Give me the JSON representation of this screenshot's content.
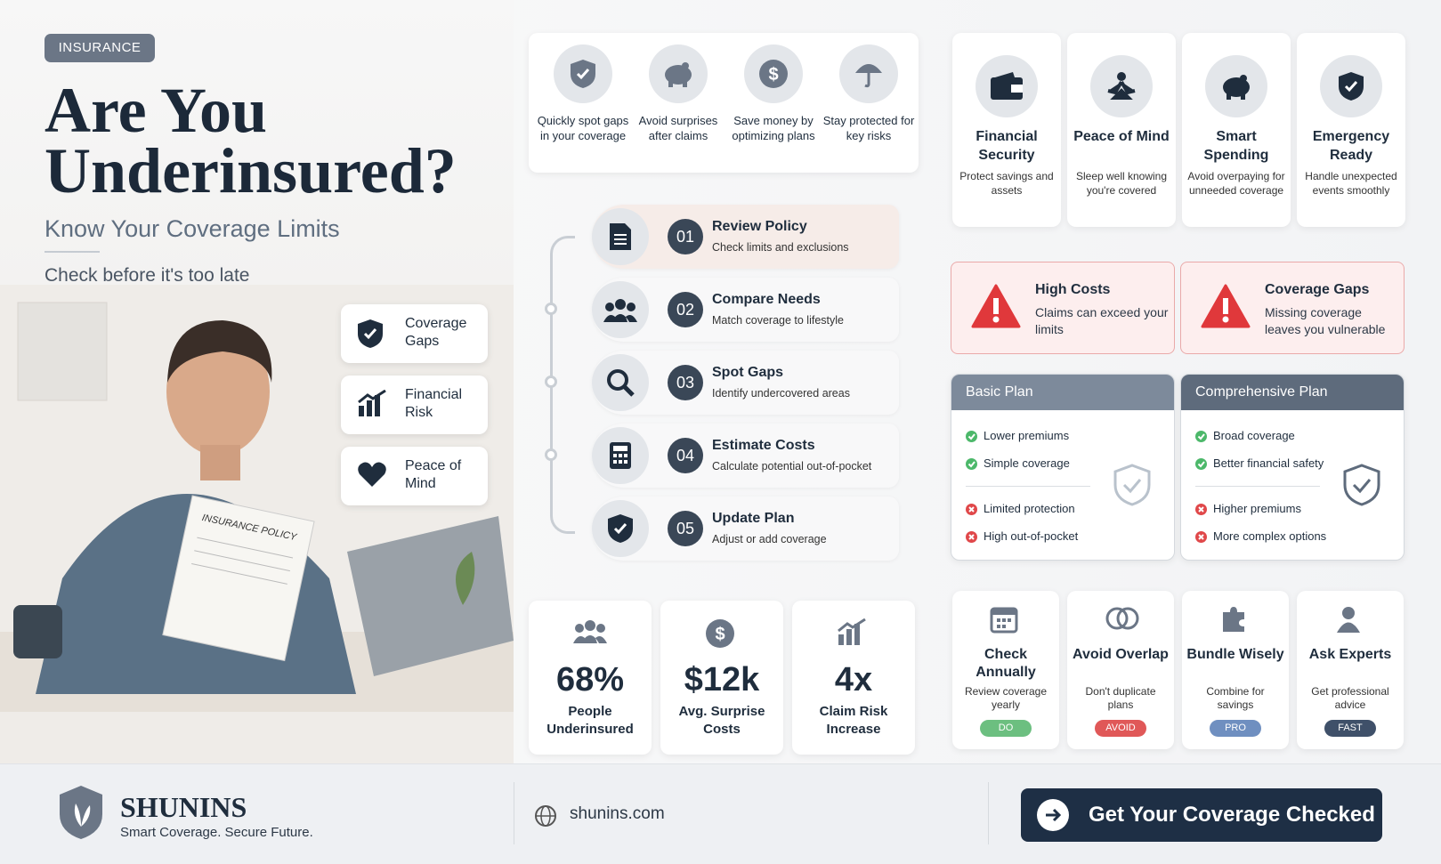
{
  "hero": {
    "tag": "INSURANCE",
    "title_line1": "Are You",
    "title_line2": "Underinsured?",
    "subtitle": "Know Your Coverage Limits",
    "tagline": "Check before it's too late",
    "document_label": "INSURANCE POLICY",
    "badges": [
      {
        "label": "Coverage Gaps"
      },
      {
        "label": "Financial Risk"
      },
      {
        "label": "Peace of Mind"
      }
    ]
  },
  "benefits": [
    {
      "text": "Quickly spot gaps in your coverage"
    },
    {
      "text": "Avoid surprises after claims"
    },
    {
      "text": "Save money by optimizing plans"
    },
    {
      "text": "Stay protected for key risks"
    }
  ],
  "steps": [
    {
      "number": "01",
      "title": "Review Policy",
      "desc": "Check limits and exclusions"
    },
    {
      "number": "02",
      "title": "Compare Needs",
      "desc": "Match coverage to lifestyle"
    },
    {
      "number": "03",
      "title": "Spot Gaps",
      "desc": "Identify undercovered areas"
    },
    {
      "number": "04",
      "title": "Estimate Costs",
      "desc": "Calculate potential out-of-pocket"
    },
    {
      "number": "05",
      "title": "Update Plan",
      "desc": "Adjust or add coverage"
    }
  ],
  "stats": [
    {
      "value": "68%",
      "label": "People Underinsured"
    },
    {
      "value": "$12k",
      "label": "Avg. Surprise Costs"
    },
    {
      "value": "4x",
      "label": "Claim Risk Increase"
    }
  ],
  "features": [
    {
      "title": "Financial Security",
      "desc": "Protect savings and assets"
    },
    {
      "title": "Peace of Mind",
      "desc": "Sleep well knowing you're covered"
    },
    {
      "title": "Smart Spending",
      "desc": "Avoid overpaying for unneeded coverage"
    },
    {
      "title": "Emergency Ready",
      "desc": "Handle unexpected events smoothly"
    }
  ],
  "alerts": [
    {
      "title": "High Costs",
      "desc": "Claims can exceed your limits"
    },
    {
      "title": "Coverage Gaps",
      "desc": "Missing coverage leaves you vulnerable"
    }
  ],
  "plans": [
    {
      "name": "Basic Plan",
      "pros": [
        "Lower premiums",
        "Simple coverage"
      ],
      "cons": [
        "Limited protection",
        "High out-of-pocket"
      ]
    },
    {
      "name": "Comprehensive Plan",
      "pros": [
        "Broad coverage",
        "Better financial safety"
      ],
      "cons": [
        "Higher premiums",
        "More complex options"
      ]
    }
  ],
  "tips": [
    {
      "title": "Check Annually",
      "desc": "Review coverage yearly",
      "tag": "DO"
    },
    {
      "title": "Avoid Overlap",
      "desc": "Don't duplicate plans",
      "tag": "AVOID"
    },
    {
      "title": "Bundle Wisely",
      "desc": "Combine for savings",
      "tag": "PRO"
    },
    {
      "title": "Ask Experts",
      "desc": "Get professional advice",
      "tag": "FAST"
    }
  ],
  "footer": {
    "brand": "SHUNINS",
    "slogan": "Smart Coverage. Secure Future.",
    "website": "shunins.com",
    "cta": "Get Your Coverage Checked"
  }
}
